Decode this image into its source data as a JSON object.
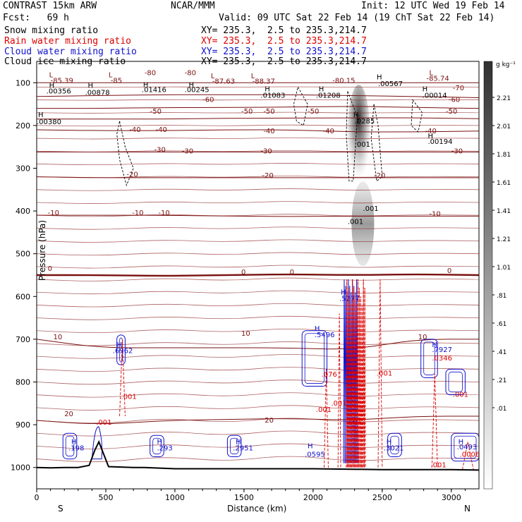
{
  "header": {
    "model": "CONTRAST 15km ARW",
    "org": "NCAR/MMM",
    "init": "Init: 12 UTC Wed 19 Feb 14",
    "fcst": "Fcst:   69 h",
    "valid": "Valid: 09 UTC Sat 22 Feb 14 (19 ChT Sat 22 Feb 14)"
  },
  "fields": [
    {
      "label": "Snow mixing ratio",
      "xy": "XY= 235.3,  2.5 to 235.3,214.7",
      "color": "#000000"
    },
    {
      "label": "Rain water mixing ratio",
      "xy": "XY= 235.3,  2.5 to 235.3,214.7",
      "color": "#dd0000"
    },
    {
      "label": "Cloud water mixing ratio",
      "xy": "XY= 235.3,  2.5 to 235.3,214.7",
      "color": "#1010cc"
    },
    {
      "label": "Cloud ice mixing ratio",
      "xy": "XY= 235.3,  2.5 to 235.3,214.7",
      "color": "#000000"
    }
  ],
  "chart_data": {
    "type": "contour cross-section",
    "xlabel": "Distance (km)",
    "ylabel": "Pressure (hPa)",
    "xlim": [
      0,
      3200
    ],
    "ylim": [
      1050,
      50
    ],
    "x_ticks": [
      0,
      500,
      1000,
      1500,
      2000,
      2500,
      3000
    ],
    "y_ticks": [
      100,
      200,
      300,
      400,
      500,
      600,
      700,
      800,
      900,
      1000
    ],
    "left_end": "S",
    "right_end": "N",
    "colorbar": {
      "unit": "g kg⁻¹",
      "labels": [
        "2.21",
        "2.01",
        "1.81",
        "1.61",
        "1.41",
        "1.21",
        "1.01",
        ".81",
        ".61",
        ".41",
        ".21",
        ".01"
      ]
    },
    "temperature_contours_C": [
      {
        "label": "-80",
        "levels_hPa": [
          100,
          100,
          100,
          100,
          100,
          100,
          100,
          100
        ]
      },
      {
        "label": "-70",
        "levels_hPa": [
          132,
          130,
          128,
          128,
          128,
          130,
          132,
          135
        ]
      },
      {
        "label": "-60",
        "levels_hPa": [
          160,
          160,
          158,
          158,
          157,
          155,
          158,
          160
        ]
      },
      {
        "label": "-50",
        "levels_hPa": [
          185,
          185,
          185,
          183,
          183,
          182,
          182,
          184
        ]
      },
      {
        "label": "-40",
        "levels_hPa": [
          210,
          212,
          212,
          210,
          210,
          215,
          215,
          213
        ]
      },
      {
        "label": "-30",
        "levels_hPa": [
          262,
          262,
          262,
          262,
          262,
          262,
          262,
          262
        ]
      },
      {
        "label": "-20",
        "levels_hPa": [
          320,
          322,
          322,
          322,
          322,
          322,
          322,
          322
        ]
      },
      {
        "label": "-10",
        "levels_hPa": [
          410,
          410,
          410,
          412,
          413,
          412,
          412,
          412
        ]
      },
      {
        "label": "0",
        "levels_hPa": [
          550,
          550,
          552,
          550,
          548,
          550,
          548,
          550
        ]
      },
      {
        "label": "10",
        "levels_hPa": [
          700,
          720,
          720,
          720,
          720,
          725,
          700,
          700
        ]
      },
      {
        "label": "20",
        "levels_hPa": [
          890,
          900,
          890,
          888,
          885,
          890,
          880,
          880
        ]
      }
    ],
    "data_labels": [
      {
        "text": "L",
        "x": 90,
        "p": 87
      },
      {
        "text": "-85.39",
        "x": 100,
        "p": 100
      },
      {
        "text": "L",
        "x": 520,
        "p": 87
      },
      {
        "text": "-85",
        "x": 535,
        "p": 100
      },
      {
        "text": "-80",
        "x": 780,
        "p": 82
      },
      {
        "text": "-80",
        "x": 1070,
        "p": 82
      },
      {
        "text": "L",
        "x": 1260,
        "p": 90
      },
      {
        "text": "-87.63",
        "x": 1270,
        "p": 102
      },
      {
        "text": "L",
        "x": 1550,
        "p": 90
      },
      {
        "text": "-88.37",
        "x": 1560,
        "p": 102
      },
      {
        "text": "-80.15",
        "x": 2140,
        "p": 100
      },
      {
        "text": "H",
        "x": 2460,
        "p": 92
      },
      {
        "text": ".00567",
        "x": 2470,
        "p": 108
      },
      {
        "text": "L",
        "x": 2840,
        "p": 82
      },
      {
        "text": "-85.74",
        "x": 2820,
        "p": 95
      },
      {
        "text": "H",
        "x": 90,
        "p": 112
      },
      {
        "text": ".00356",
        "x": 70,
        "p": 125
      },
      {
        "text": "H",
        "x": 370,
        "p": 112
      },
      {
        "text": ".00878",
        "x": 350,
        "p": 128
      },
      {
        "text": "H",
        "x": 770,
        "p": 110
      },
      {
        "text": ".01416",
        "x": 760,
        "p": 122
      },
      {
        "text": "H",
        "x": 1100,
        "p": 110
      },
      {
        "text": ".00245",
        "x": 1070,
        "p": 122
      },
      {
        "text": "H",
        "x": 1650,
        "p": 120
      },
      {
        "text": ".01083",
        "x": 1620,
        "p": 135
      },
      {
        "text": "H",
        "x": 2040,
        "p": 120
      },
      {
        "text": ".01208",
        "x": 2020,
        "p": 135
      },
      {
        "text": "H",
        "x": 2790,
        "p": 120
      },
      {
        "text": ".00014",
        "x": 2790,
        "p": 135
      },
      {
        "text": "-70",
        "x": 3010,
        "p": 118
      },
      {
        "text": "-60",
        "x": 2980,
        "p": 145
      },
      {
        "text": "-60",
        "x": 1200,
        "p": 145
      },
      {
        "text": "-50",
        "x": 820,
        "p": 172
      },
      {
        "text": "-50",
        "x": 1480,
        "p": 172
      },
      {
        "text": "-50",
        "x": 1640,
        "p": 172
      },
      {
        "text": "-50",
        "x": 1960,
        "p": 172
      },
      {
        "text": "-50",
        "x": 2960,
        "p": 172
      },
      {
        "text": "H",
        "x": 10,
        "p": 180
      },
      {
        "text": ".00380",
        "x": 0,
        "p": 197
      },
      {
        "text": "H",
        "x": 2290,
        "p": 180
      },
      {
        "text": ".0285",
        "x": 2300,
        "p": 195
      },
      {
        "text": "-40",
        "x": 670,
        "p": 215
      },
      {
        "text": "-40",
        "x": 860,
        "p": 215
      },
      {
        "text": "-40",
        "x": 1640,
        "p": 218
      },
      {
        "text": "-40",
        "x": 2070,
        "p": 218
      },
      {
        "text": "-40",
        "x": 2810,
        "p": 218
      },
      {
        "text": "H",
        "x": 2830,
        "p": 230
      },
      {
        "text": ".00194",
        "x": 2830,
        "p": 243
      },
      {
        "text": "-30",
        "x": 850,
        "p": 262
      },
      {
        "text": "-30",
        "x": 1050,
        "p": 265
      },
      {
        "text": "-30",
        "x": 1620,
        "p": 265
      },
      {
        "text": "-30",
        "x": 3000,
        "p": 265
      },
      {
        "text": ".001",
        "x": 2300,
        "p": 250
      },
      {
        "text": "-20",
        "x": 650,
        "p": 320
      },
      {
        "text": "-20",
        "x": 1630,
        "p": 322
      },
      {
        "text": "-20",
        "x": 2440,
        "p": 322
      },
      {
        "text": "-10",
        "x": 80,
        "p": 410
      },
      {
        "text": "-10",
        "x": 690,
        "p": 410
      },
      {
        "text": "-10",
        "x": 880,
        "p": 410
      },
      {
        "text": "-10",
        "x": 2840,
        "p": 412
      },
      {
        "text": ".001",
        "x": 2360,
        "p": 400
      },
      {
        "text": ".001",
        "x": 2250,
        "p": 430
      },
      {
        "text": "0",
        "x": 80,
        "p": 540
      },
      {
        "text": "0",
        "x": 1480,
        "p": 548
      },
      {
        "text": "0",
        "x": 1830,
        "p": 548
      },
      {
        "text": "0",
        "x": 2970,
        "p": 545
      },
      {
        "text": "H",
        "x": 2200,
        "p": 595
      },
      {
        "text": ".5277",
        "x": 2190,
        "p": 610
      },
      {
        "text": "10",
        "x": 120,
        "p": 700
      },
      {
        "text": "10",
        "x": 1480,
        "p": 692
      },
      {
        "text": "10",
        "x": 2760,
        "p": 700
      },
      {
        "text": "H",
        "x": 580,
        "p": 718
      },
      {
        "text": ".6962",
        "x": 550,
        "p": 732
      },
      {
        "text": "H",
        "x": 2010,
        "p": 680
      },
      {
        "text": ".5496",
        "x": 2010,
        "p": 695
      },
      {
        "text": "H",
        "x": 2860,
        "p": 718
      },
      {
        "text": ".7927",
        "x": 2860,
        "p": 730
      },
      {
        "text": ".0346",
        "x": 2860,
        "p": 750
      },
      {
        "text": ".001",
        "x": 610,
        "p": 840
      },
      {
        "text": ".076",
        "x": 2060,
        "p": 788
      },
      {
        "text": ".001",
        "x": 2460,
        "p": 785
      },
      {
        "text": ".001",
        "x": 2020,
        "p": 870
      },
      {
        "text": ".001",
        "x": 2130,
        "p": 855
      },
      {
        "text": ".001",
        "x": 3010,
        "p": 835
      },
      {
        "text": "20",
        "x": 200,
        "p": 880
      },
      {
        "text": "20",
        "x": 1650,
        "p": 895
      },
      {
        "text": ".001",
        "x": 430,
        "p": 900
      },
      {
        "text": "H",
        "x": 250,
        "p": 945
      },
      {
        "text": ".198",
        "x": 230,
        "p": 960
      },
      {
        "text": "H",
        "x": 870,
        "p": 945
      },
      {
        "text": ".293",
        "x": 870,
        "p": 960
      },
      {
        "text": "H",
        "x": 1440,
        "p": 945
      },
      {
        "text": ".2951",
        "x": 1420,
        "p": 960
      },
      {
        "text": "H",
        "x": 1960,
        "p": 955
      },
      {
        "text": ".0595",
        "x": 1940,
        "p": 975
      },
      {
        "text": "H",
        "x": 2530,
        "p": 945
      },
      {
        "text": ".3021",
        "x": 2510,
        "p": 960
      },
      {
        "text": "H",
        "x": 3050,
        "p": 945
      },
      {
        "text": ".0493",
        "x": 3040,
        "p": 958
      },
      {
        "text": ".0006",
        "x": 3060,
        "p": 975
      },
      {
        "text": ".001",
        "x": 2850,
        "p": 1000
      },
      {
        "text": ".001",
        "x": 2240,
        "p": 895
      }
    ],
    "terrain_hPa": [
      [
        0,
        1000
      ],
      [
        100,
        1001
      ],
      [
        200,
        1000
      ],
      [
        300,
        1000
      ],
      [
        380,
        995
      ],
      [
        420,
        960
      ],
      [
        450,
        940
      ],
      [
        480,
        965
      ],
      [
        520,
        998
      ],
      [
        700,
        1000
      ],
      [
        780,
        1000
      ],
      [
        1000,
        1003
      ],
      [
        1500,
        1003
      ],
      [
        2000,
        1003
      ],
      [
        2500,
        1005
      ],
      [
        3000,
        1005
      ],
      [
        3200,
        1006
      ]
    ]
  }
}
